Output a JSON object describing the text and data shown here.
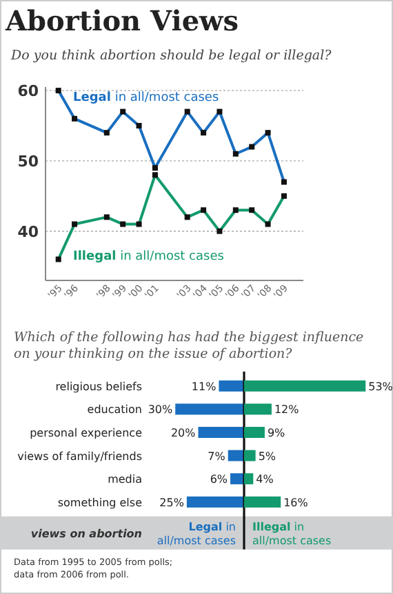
{
  "chart_data": [
    {
      "type": "line",
      "title": "Abortion Views",
      "subtitle": "Do you think abortion should be legal or illegal?",
      "x": [
        1995,
        1996,
        1998,
        1999,
        2000,
        2001,
        2003,
        2004,
        2005,
        2006,
        2007,
        2008,
        2009
      ],
      "xlim": [
        1994.2,
        2010.2
      ],
      "xticks": [
        {
          "value": 1995,
          "label": "'95"
        },
        {
          "value": 1996,
          "label": "'96"
        },
        {
          "value": 1998,
          "label": "'98"
        },
        {
          "value": 1999,
          "label": "'99"
        },
        {
          "value": 2000,
          "label": "'00"
        },
        {
          "value": 2001,
          "label": "'01"
        },
        {
          "value": 2003,
          "label": "'03"
        },
        {
          "value": 2004,
          "label": "'04"
        },
        {
          "value": 2005,
          "label": "'05"
        },
        {
          "value": 2006,
          "label": "'06"
        },
        {
          "value": 2007,
          "label": "'07"
        },
        {
          "value": 2008,
          "label": "'08"
        },
        {
          "value": 2009,
          "label": "'09"
        }
      ],
      "ylim": [
        33,
        60.5
      ],
      "yticks": [
        40,
        50,
        60
      ],
      "grid": "y",
      "marker": "square",
      "line_style": "solid",
      "series": [
        {
          "name": "Legal in all/most cases",
          "color": "#1a6fc0",
          "values": [
            60,
            56,
            54,
            57,
            55,
            49,
            57,
            54,
            57,
            51,
            52,
            54,
            47
          ]
        },
        {
          "name": "Illegal in all/most cases",
          "color": "#139a6e",
          "values": [
            36,
            41,
            42,
            41,
            41,
            48,
            42,
            43,
            40,
            43,
            43,
            41,
            45
          ]
        }
      ]
    },
    {
      "type": "bar",
      "orientation": "horizontal",
      "title": "Which of the following has had the biggest influence on your thinking on the issue of abortion?",
      "categories": [
        "religious beliefs",
        "education",
        "personal experience",
        "views of family/friends",
        "media",
        "something else"
      ],
      "xlim": [
        30,
        0
      ],
      "tick_labels": "y",
      "legend_title": "views on abortion",
      "series": [
        {
          "name": "Legal in all/most cases",
          "color": "#1a6fc0",
          "values": [
            11,
            30,
            20,
            7,
            6,
            25
          ],
          "value_labels": [
            "11%",
            "30%",
            "20%",
            "7%",
            "6%",
            "25%"
          ]
        }
      ],
      "annotations": [
        "Data from 1995 to 2005 from polls;",
        "data from 2006 from poll."
      ]
    },
    {
      "type": "bar",
      "orientation": "horizontal",
      "categories": [
        null,
        null,
        null,
        null,
        null,
        null
      ],
      "xlim": [
        0,
        53
      ],
      "tick_labels": false,
      "series": [
        {
          "name": "Illegal in all/most cases",
          "color": "#139a6e",
          "values": [
            53,
            12,
            9,
            5,
            4,
            16
          ],
          "value_labels": [
            "53%",
            "12%",
            "9%",
            "5%",
            "4%",
            "16%"
          ]
        }
      ]
    }
  ]
}
